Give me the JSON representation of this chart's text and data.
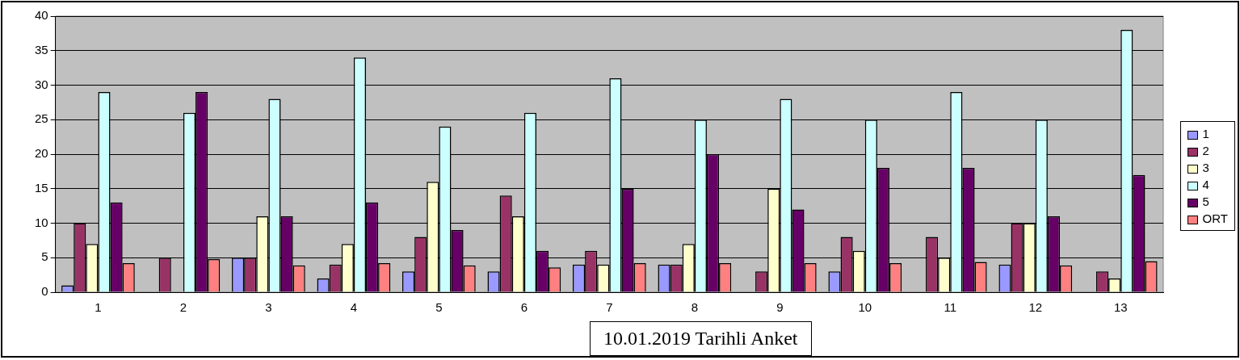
{
  "chart_data": {
    "type": "bar",
    "categories": [
      "1",
      "2",
      "3",
      "4",
      "5",
      "6",
      "7",
      "8",
      "9",
      "10",
      "11",
      "12",
      "13"
    ],
    "series": [
      {
        "name": "1",
        "color": "#9999ff",
        "values": [
          1,
          0,
          5,
          2,
          3,
          3,
          4,
          4,
          null,
          3,
          0,
          4,
          0
        ]
      },
      {
        "name": "2",
        "color": "#993366",
        "values": [
          10,
          5,
          5,
          4,
          8,
          14,
          6,
          4,
          3,
          8,
          8,
          10,
          3
        ]
      },
      {
        "name": "3",
        "color": "#ffffcc",
        "values": [
          7,
          0,
          11,
          7,
          16,
          11,
          4,
          7,
          15,
          6,
          5,
          10,
          2
        ]
      },
      {
        "name": "4",
        "color": "#ccffff",
        "values": [
          29,
          26,
          28,
          34,
          24,
          26,
          31,
          25,
          28,
          25,
          29,
          25,
          38
        ]
      },
      {
        "name": "5",
        "color": "#660066",
        "values": [
          13,
          29,
          11,
          13,
          9,
          6,
          15,
          20,
          12,
          18,
          18,
          11,
          17
        ]
      },
      {
        "name": "ORT",
        "color": "#ff8080",
        "values": [
          4.2,
          4.8,
          3.9,
          4.2,
          3.9,
          3.6,
          4.2,
          4.2,
          4.2,
          4.2,
          4.4,
          3.9,
          4.5
        ]
      }
    ],
    "ylim": [
      0,
      40
    ],
    "yticks": [
      0,
      5,
      10,
      15,
      20,
      25,
      30,
      35,
      40
    ],
    "grid": "y",
    "legend": "right",
    "annotations": [
      "10.01.2019 Tarihli Anket"
    ]
  }
}
